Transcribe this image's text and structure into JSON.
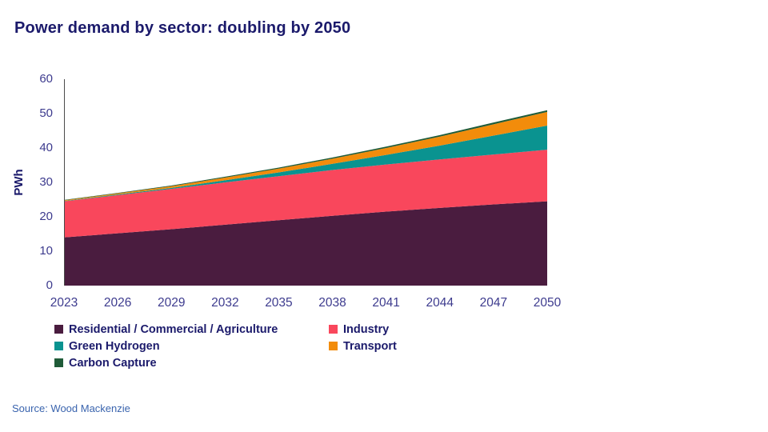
{
  "title": "Power demand by sector: doubling by 2050",
  "y_axis_label": "PWh",
  "source": "Source: Wood Mackenzie",
  "colors": {
    "title_text": "#1b1a6b",
    "tick_text": "#3d3b8e",
    "source_text": "#3a64ae",
    "axis_line": "#4a4a4a",
    "background": "#ffffff"
  },
  "chart_data": {
    "type": "area",
    "stacked": true,
    "title": "Power demand by sector: doubling by 2050",
    "xlabel": "",
    "ylabel": "PWh",
    "ylim": [
      0,
      60
    ],
    "yticks": [
      0,
      10,
      20,
      30,
      40,
      50,
      60
    ],
    "xticks": [
      2023,
      2026,
      2029,
      2032,
      2035,
      2038,
      2041,
      2044,
      2047,
      2050
    ],
    "grid": false,
    "legend_position": "bottom",
    "x": [
      2023,
      2026,
      2029,
      2032,
      2035,
      2038,
      2041,
      2044,
      2047,
      2050
    ],
    "series": [
      {
        "name": "Residential / Commercial / Agriculture",
        "color": "#4a1c3f",
        "values": [
          14.0,
          15.2,
          16.4,
          17.7,
          19.0,
          20.3,
          21.5,
          22.6,
          23.6,
          24.5
        ]
      },
      {
        "name": "Industry",
        "color": "#f9475c",
        "values": [
          10.5,
          11.1,
          11.7,
          12.3,
          12.8,
          13.3,
          13.7,
          14.1,
          14.5,
          15.0
        ]
      },
      {
        "name": "Green Hydrogen",
        "color": "#0a9390",
        "values": [
          0.1,
          0.2,
          0.3,
          0.6,
          1.1,
          1.8,
          2.8,
          4.0,
          5.5,
          7.0
        ]
      },
      {
        "name": "Transport",
        "color": "#f28c0b",
        "values": [
          0.2,
          0.3,
          0.5,
          0.8,
          1.1,
          1.5,
          2.0,
          2.6,
          3.3,
          4.0
        ]
      },
      {
        "name": "Carbon Capture",
        "color": "#1f5b38",
        "values": [
          0.1,
          0.15,
          0.2,
          0.25,
          0.3,
          0.35,
          0.4,
          0.45,
          0.5,
          0.5
        ]
      }
    ]
  }
}
